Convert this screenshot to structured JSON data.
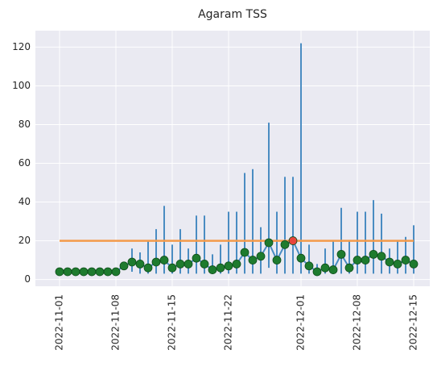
{
  "chart_data": {
    "type": "errorline",
    "title": "Agaram TSS",
    "x": [
      "2022-11-01",
      "2022-11-02",
      "2022-11-03",
      "2022-11-04",
      "2022-11-05",
      "2022-11-06",
      "2022-11-07",
      "2022-11-08",
      "2022-11-09",
      "2022-11-10",
      "2022-11-11",
      "2022-11-12",
      "2022-11-13",
      "2022-11-14",
      "2022-11-15",
      "2022-11-16",
      "2022-11-17",
      "2022-11-18",
      "2022-11-19",
      "2022-11-20",
      "2022-11-21",
      "2022-11-22",
      "2022-11-23",
      "2022-11-24",
      "2022-11-25",
      "2022-11-26",
      "2022-11-27",
      "2022-11-28",
      "2022-11-29",
      "2022-11-30",
      "2022-12-01",
      "2022-12-02",
      "2022-12-03",
      "2022-12-04",
      "2022-12-05",
      "2022-12-06",
      "2022-12-07",
      "2022-12-08",
      "2022-12-09",
      "2022-12-10",
      "2022-12-11",
      "2022-12-12",
      "2022-12-13",
      "2022-12-14",
      "2022-12-15"
    ],
    "values": [
      4,
      4,
      4,
      4,
      4,
      4,
      4,
      4,
      7,
      9,
      8,
      6,
      9,
      10,
      6,
      8,
      8,
      11,
      8,
      5,
      6,
      7,
      8,
      14,
      10,
      12,
      19,
      10,
      18,
      20,
      11,
      7,
      4,
      6,
      5,
      13,
      6,
      10,
      10,
      13,
      12,
      9,
      8,
      10,
      8
    ],
    "lower": [
      3,
      3,
      3,
      3,
      3,
      3,
      3,
      3,
      5,
      4,
      3,
      3,
      3,
      3,
      3,
      3,
      3,
      3,
      3,
      3,
      3,
      3,
      3,
      3,
      3,
      3,
      6,
      3,
      3,
      3,
      3,
      3,
      2,
      3,
      3,
      3,
      3,
      3,
      3,
      3,
      3,
      3,
      3,
      3,
      3
    ],
    "upper": [
      5,
      5,
      5,
      5,
      5,
      5,
      5,
      5,
      9,
      16,
      14,
      20,
      26,
      38,
      18,
      26,
      16,
      33,
      33,
      13,
      18,
      35,
      35,
      55,
      57,
      27,
      81,
      35,
      53,
      53,
      122,
      18,
      8,
      16,
      20,
      37,
      20,
      35,
      35,
      41,
      34,
      16,
      20,
      22,
      28
    ],
    "line_color": "#4a8cc2",
    "error_color": "#4a8cc2",
    "marker_colors": [
      "#1e7b2e",
      "#1e7b2e",
      "#1e7b2e",
      "#1e7b2e",
      "#1e7b2e",
      "#1e7b2e",
      "#1e7b2e",
      "#1e7b2e",
      "#1e7b2e",
      "#1e7b2e",
      "#1e7b2e",
      "#1e7b2e",
      "#1e7b2e",
      "#1e7b2e",
      "#1e7b2e",
      "#1e7b2e",
      "#1e7b2e",
      "#1e7b2e",
      "#1e7b2e",
      "#1e7b2e",
      "#1e7b2e",
      "#1e7b2e",
      "#1e7b2e",
      "#1e7b2e",
      "#1e7b2e",
      "#1e7b2e",
      "#1e7b2e",
      "#1e7b2e",
      "#1e7b2e",
      "#e8453c",
      "#1e7b2e",
      "#1e7b2e",
      "#1e7b2e",
      "#1e7b2e",
      "#1e7b2e",
      "#1e7b2e",
      "#1e7b2e",
      "#1e7b2e",
      "#1e7b2e",
      "#1e7b2e",
      "#1e7b2e",
      "#1e7b2e",
      "#1e7b2e",
      "#1e7b2e",
      "#1e7b2e"
    ],
    "threshold": {
      "value": 20,
      "color": "#f39a4a"
    },
    "xlim": [
      "2022-10-29",
      "2022-12-17"
    ],
    "xticks": [
      "2022-11-01",
      "2022-11-08",
      "2022-11-15",
      "2022-11-22",
      "2022-12-01",
      "2022-12-08",
      "2022-12-15"
    ],
    "ylim": [
      -3.5,
      128.5
    ],
    "yticks": [
      0,
      20,
      40,
      60,
      80,
      100,
      120
    ],
    "grid": true
  }
}
